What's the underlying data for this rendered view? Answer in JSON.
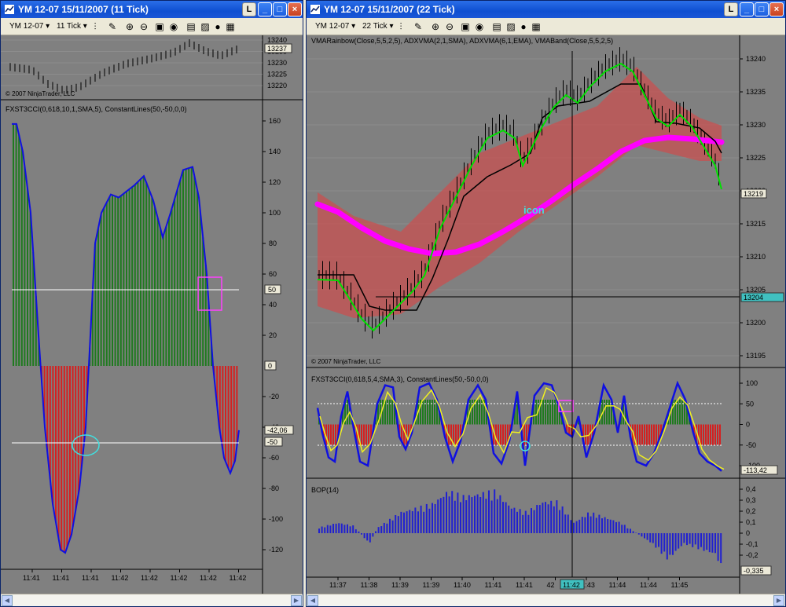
{
  "left_window": {
    "title": "YM 12-07  15/11/2007  (11 Tick)",
    "instrument": "YM 12-07",
    "interval": "11 Tick",
    "caption_buttons": [
      "L",
      "_",
      "□",
      "×"
    ],
    "price_panel": {
      "copyright": "© 2007 NinjaTrader, LLC",
      "y_ticks": [
        "13240",
        "13235",
        "13230",
        "13225",
        "13220"
      ],
      "last_price": "13237"
    },
    "cci_panel": {
      "label": "FXST3CCI(0,618,10,1,SMA,5), ConstantLines(50,-50,0,0)",
      "y_ticks": [
        "160",
        "140",
        "120",
        "100",
        "80",
        "60",
        "40",
        "20",
        "0",
        "-20",
        "-40",
        "-60",
        "-80",
        "-100",
        "-120"
      ],
      "marker_50": "50",
      "marker_0": "0",
      "marker_m50": "-50",
      "last_value": "-42,06"
    },
    "x_labels": [
      "11:41",
      "11:41",
      "11:41",
      "11:42",
      "11:42",
      "11:42",
      "11:42",
      "11:42"
    ],
    "colors": {
      "positive": "#1f7a1f",
      "negative": "#d42020",
      "line": "#1010e0"
    }
  },
  "right_window": {
    "title": "YM 12-07  15/11/2007  (22 Tick)",
    "instrument": "YM 12-07",
    "interval": "22 Tick",
    "caption_buttons": [
      "L",
      "_",
      "□",
      "×"
    ],
    "price_panel": {
      "label": "VMARainbow(Close,5,5,2,5), ADXVMA(2,1,SMA), ADXVMA(6,1,EMA), VMABand(Close,5,5,2,5)",
      "copyright": "© 2007 NinjaTrader, LLC",
      "y_ticks": [
        "13240",
        "13235",
        "13230",
        "13225",
        "13220",
        "13215",
        "13210",
        "13205",
        "13200",
        "13195"
      ],
      "last_price": "13219",
      "crosshair_price": "13204",
      "annotation": "icon"
    },
    "cci_panel": {
      "label": "FXST3CCI(0,618,5,4,SMA,3), ConstantLines(50,-50,0,0)",
      "y_ticks": [
        "100",
        "50",
        "0",
        "-50",
        "-100"
      ],
      "last_value": "-113,42"
    },
    "bop_panel": {
      "label": "BOP(14)",
      "y_ticks": [
        "0,4",
        "0,3",
        "0,2",
        "0,1",
        "0",
        "-0,1",
        "-0,2"
      ],
      "last_value": "-0,335"
    },
    "x_labels": [
      "11:37",
      "11:38",
      "11:39",
      "11:39",
      "11:40",
      "11:41",
      "11:41",
      "42",
      "11:43",
      "11:44",
      "11:44",
      "11:45"
    ],
    "crosshair_time": "11:42",
    "colors": {
      "band": "#c85050",
      "rainbow": "#ff00ff",
      "fast": "#00e000",
      "slow": "#000000",
      "bop": "#2020d0"
    }
  }
}
